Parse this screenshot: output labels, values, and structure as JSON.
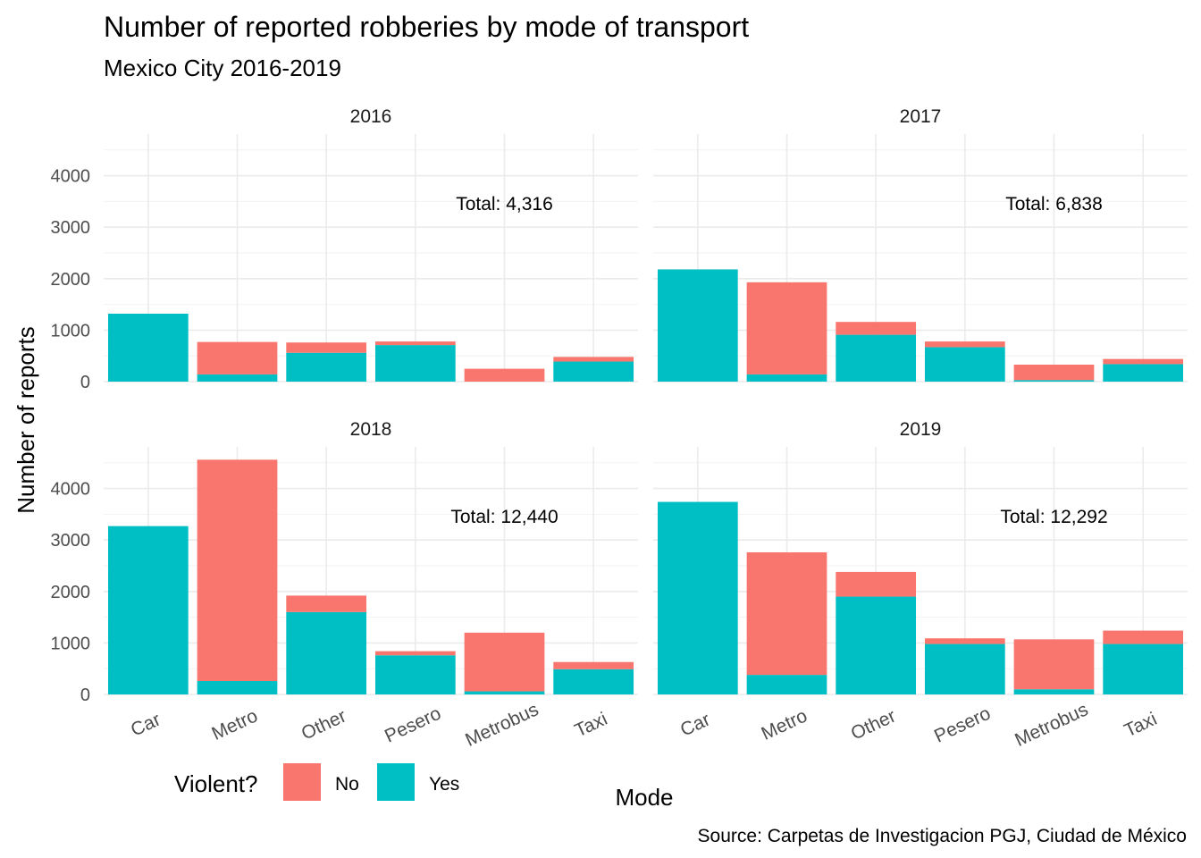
{
  "chart_data": {
    "type": "bar",
    "stacked": true,
    "title": "Number of reported robberies by mode of transport",
    "subtitle": "Mexico City 2016-2019",
    "xlabel": "Mode",
    "ylabel": "Number of reports",
    "caption": "Source: Carpetas de Investigacion PGJ, Ciudad de México",
    "categories": [
      "Car",
      "Metro",
      "Other",
      "Pesero",
      "Metrobus",
      "Taxi"
    ],
    "ylim": [
      0,
      4800
    ],
    "yticks": [
      0,
      1000,
      2000,
      3000,
      4000
    ],
    "grid": true,
    "legend": {
      "title": "Violent?",
      "position": "bottom-left",
      "entries": [
        {
          "name": "No",
          "color": "#F8766D"
        },
        {
          "name": "Yes",
          "color": "#00BFC4"
        }
      ]
    },
    "panels": [
      {
        "label": "2016",
        "total_label": "Total: 4,316",
        "series": [
          {
            "name": "Yes",
            "values": [
              1320,
              140,
              560,
              710,
              0,
              390
            ]
          },
          {
            "name": "No",
            "values": [
              0,
              630,
              200,
              70,
              250,
              90
            ]
          }
        ]
      },
      {
        "label": "2017",
        "total_label": "Total: 6,838",
        "series": [
          {
            "name": "Yes",
            "values": [
              2180,
              140,
              910,
              670,
              30,
              340
            ]
          },
          {
            "name": "No",
            "values": [
              0,
              1790,
              250,
              110,
              300,
              100
            ]
          }
        ]
      },
      {
        "label": "2018",
        "total_label": "Total: 12,440",
        "series": [
          {
            "name": "Yes",
            "values": [
              3270,
              260,
              1600,
              760,
              60,
              490
            ]
          },
          {
            "name": "No",
            "values": [
              0,
              4300,
              320,
              80,
              1140,
              140
            ]
          }
        ]
      },
      {
        "label": "2019",
        "total_label": "Total: 12,292",
        "series": [
          {
            "name": "Yes",
            "values": [
              3740,
              380,
              1900,
              980,
              100,
              980
            ]
          },
          {
            "name": "No",
            "values": [
              0,
              2380,
              480,
              110,
              970,
              260
            ]
          }
        ]
      }
    ]
  }
}
